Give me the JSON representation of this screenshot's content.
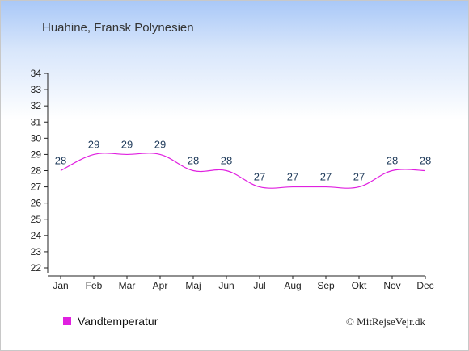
{
  "chart_data": {
    "type": "line",
    "title": "Huahine, Fransk Polynesien",
    "categories": [
      "Jan",
      "Feb",
      "Mar",
      "Apr",
      "Maj",
      "Jun",
      "Jul",
      "Aug",
      "Sep",
      "Okt",
      "Nov",
      "Dec"
    ],
    "series": [
      {
        "name": "Vandtemperatur",
        "values": [
          28,
          29,
          29,
          29,
          28,
          28,
          27,
          27,
          27,
          27,
          28,
          28
        ],
        "color": "#e020e0"
      }
    ],
    "y_ticks": [
      22,
      23,
      24,
      25,
      26,
      27,
      28,
      29,
      30,
      31,
      32,
      33,
      34
    ],
    "ylim": [
      22,
      34
    ],
    "grid": false,
    "legend_position": "bottom-left"
  },
  "credit": "© MitRejseVejr.dk"
}
